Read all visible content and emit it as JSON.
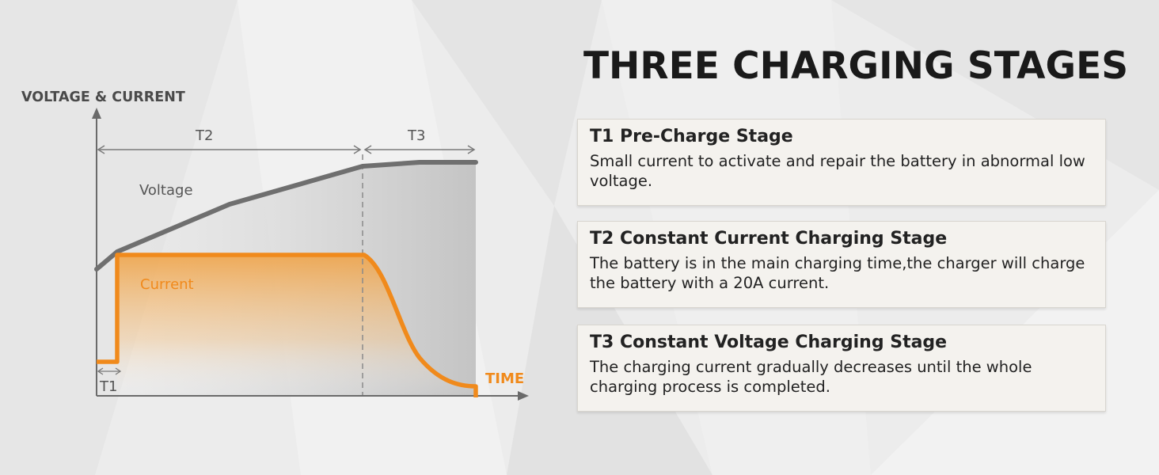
{
  "diagram": {
    "y_axis_label": "VOLTAGE & CURRENT",
    "x_axis_label": "TIME",
    "curve_voltage_label": "Voltage",
    "curve_current_label": "Current",
    "span_t1_label": "T1",
    "span_t2_label": "T2",
    "span_t3_label": "T3",
    "colors": {
      "voltage": "#6f6f6f",
      "current": "#f08a1c",
      "axis": "#6a6a6a",
      "time_label": "#f08a1c"
    }
  },
  "header": {
    "title": "THREE CHARGING STAGES"
  },
  "stages": [
    {
      "title": "T1 Pre-Charge Stage",
      "text": "Small current to activate and repair the battery in abnormal low voltage."
    },
    {
      "title": "T2 Constant Current Charging Stage",
      "text": "The battery is in the main charging time,the charger will charge the battery with a 20A current."
    },
    {
      "title": "T3 Constant Voltage Charging Stage",
      "text": "The charging current gradually decreases until the whole charging process is completed."
    }
  ]
}
